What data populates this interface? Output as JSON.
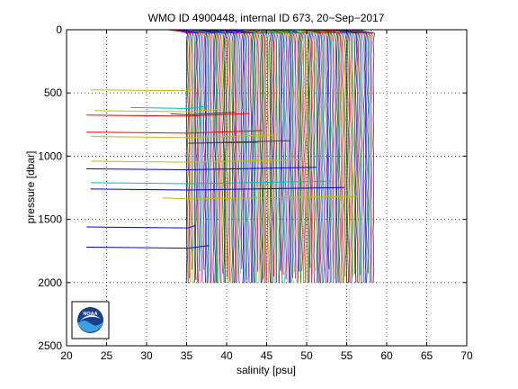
{
  "chart_data": {
    "type": "line",
    "title": "WMO ID 4900448, internal ID 673, 20−Sep−2017",
    "xlabel": "salinity [psu]",
    "ylabel": "pressure [dbar]",
    "xlim": [
      20,
      70
    ],
    "ylim": [
      0,
      2500
    ],
    "y_reversed": true,
    "grid": true,
    "grid_style": "dotted",
    "x_ticks": [
      20,
      25,
      30,
      35,
      40,
      45,
      50,
      55,
      60,
      65,
      70
    ],
    "y_ticks": [
      0,
      500,
      1000,
      1500,
      2000,
      2500
    ],
    "x_tick_labels": [
      "20",
      "25",
      "30",
      "35",
      "40",
      "45",
      "50",
      "55",
      "60",
      "65",
      "70"
    ],
    "y_tick_labels": [
      "0",
      "500",
      "1000",
      "1500",
      "2000",
      "2500"
    ],
    "series_colors": [
      "#0000ff",
      "#008000",
      "#ff0000",
      "#00bfbf",
      "#bf00bf",
      "#bfbf00",
      "#404040"
    ],
    "profiles": {
      "count": 140,
      "base_salinity_start": 35.0,
      "offset_step_psu": 0.168,
      "surface_salinity_range": [
        31.5,
        35.0
      ],
      "max_pressure": 2000
    },
    "spikes": [
      {
        "p": 475,
        "x_start": 23.0,
        "color": "#bfbf00"
      },
      {
        "p": 615,
        "x_start": 28.0,
        "color": "#00bfbf"
      },
      {
        "p": 640,
        "x_start": 23.5,
        "color": "#bfbf00"
      },
      {
        "p": 665,
        "x_start": 33.0,
        "color": "#404040"
      },
      {
        "p": 675,
        "x_start": 22.5,
        "color": "#ff0000"
      },
      {
        "p": 810,
        "x_start": 22.5,
        "color": "#ff0000"
      },
      {
        "p": 845,
        "x_start": 23.0,
        "color": "#bfbf00"
      },
      {
        "p": 890,
        "x_start": 44.0,
        "color": "#404040"
      },
      {
        "p": 1040,
        "x_start": 23.0,
        "color": "#bfbf00"
      },
      {
        "p": 1100,
        "x_start": 22.5,
        "color": "#0000ff"
      },
      {
        "p": 1210,
        "x_start": 23.0,
        "color": "#00bfbf"
      },
      {
        "p": 1260,
        "x_start": 23.0,
        "color": "#0000ff"
      },
      {
        "p": 1330,
        "x_start": 32.0,
        "color": "#bfbf00"
      },
      {
        "p": 1560,
        "x_start": 22.5,
        "color": "#0000ff"
      },
      {
        "p": 1720,
        "x_start": 22.5,
        "color": "#0000ff"
      }
    ]
  },
  "logo": {
    "text": "NOAA",
    "colors": {
      "sky": "#1a3e8c",
      "ring": "#ffffff",
      "wave": "#3aa0e0",
      "bird": "#ffffff"
    }
  }
}
